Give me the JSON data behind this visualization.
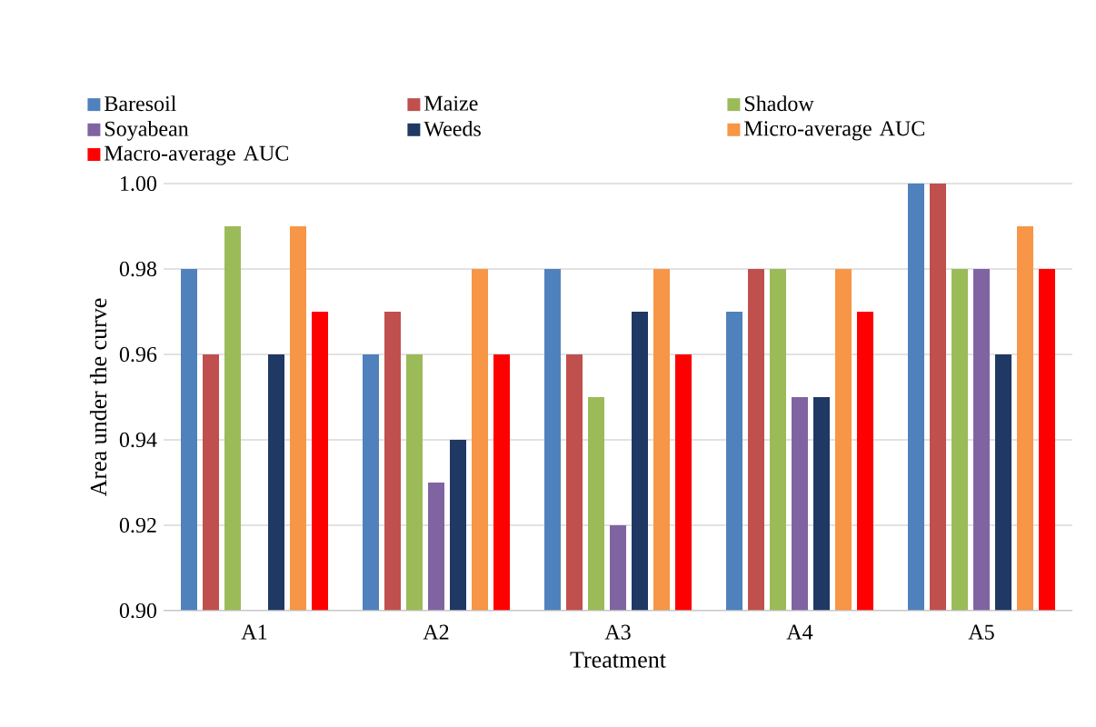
{
  "chart_data": {
    "type": "bar",
    "xlabel": "Treatment",
    "ylabel": "Area under the curve",
    "categories": [
      "A1",
      "A2",
      "A3",
      "A4",
      "A5"
    ],
    "series": [
      {
        "name": "Baresoil",
        "color": "#4f81bd",
        "values": [
          0.98,
          0.96,
          0.98,
          0.97,
          1.0
        ]
      },
      {
        "name": "Maize",
        "color": "#c0504d",
        "values": [
          0.96,
          0.97,
          0.96,
          0.98,
          1.0
        ]
      },
      {
        "name": "Shadow",
        "color": "#9bbb59",
        "values": [
          0.99,
          0.96,
          0.95,
          0.98,
          0.98
        ]
      },
      {
        "name": "Soyabean",
        "color": "#8064a2",
        "values": [
          null,
          0.93,
          0.92,
          0.95,
          0.98
        ]
      },
      {
        "name": "Weeds",
        "color": "#1f3864",
        "values": [
          0.96,
          0.94,
          0.97,
          0.95,
          0.96
        ]
      },
      {
        "name": "Micro-average AUC",
        "color": "#f79646",
        "values": [
          0.99,
          0.98,
          0.98,
          0.98,
          0.99
        ]
      },
      {
        "name": "Macro-average AUC",
        "color": "#ff0000",
        "values": [
          0.97,
          0.96,
          0.96,
          0.97,
          0.98
        ]
      }
    ],
    "ylim": [
      0.9,
      1.0
    ],
    "yticks": [
      {
        "value": 0.9,
        "label": "0.90"
      },
      {
        "value": 0.92,
        "label": "0.92"
      },
      {
        "value": 0.94,
        "label": "0.94"
      },
      {
        "value": 0.96,
        "label": "0.96"
      },
      {
        "value": 0.98,
        "label": "0.98"
      },
      {
        "value": 1.0,
        "label": "1.00"
      }
    ],
    "grid": "y",
    "legend": "top"
  }
}
